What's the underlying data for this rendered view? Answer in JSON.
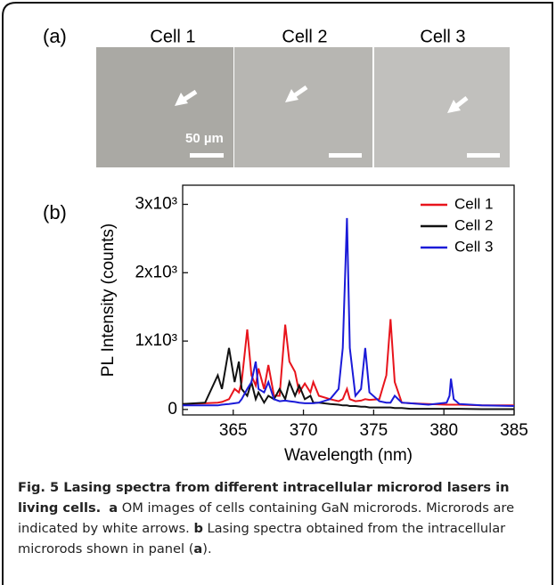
{
  "panel_a": {
    "label": "(a)",
    "cells": [
      "Cell 1",
      "Cell 2",
      "Cell 3"
    ],
    "scale_bar": "50 µm"
  },
  "panel_b": {
    "label": "(b)"
  },
  "chart_data": {
    "type": "line",
    "xlabel": "Wavelength (nm)",
    "ylabel": "PL Intensity (counts)",
    "xlim": [
      361.4,
      385
    ],
    "xticks": [
      365,
      370,
      375,
      380,
      385
    ],
    "ylim": [
      -80,
      3280
    ],
    "yticks": [
      0,
      {
        "value": 1000,
        "label": "1x10³"
      },
      {
        "value": 2000,
        "label": "2x10³"
      },
      {
        "value": 3000,
        "label": "3x10³"
      }
    ],
    "legend": "upper right",
    "x": [
      361.4,
      363.0,
      363.9,
      364.2,
      364.7,
      365.1,
      365.4,
      365.6,
      366.0,
      366.3,
      366.6,
      366.8,
      367.2,
      367.5,
      367.9,
      368.3,
      368.7,
      369.0,
      369.4,
      369.7,
      370.1,
      370.5,
      370.7,
      371.1,
      371.9,
      372.5,
      372.8,
      373.1,
      373.3,
      373.7,
      374.1,
      374.4,
      374.7,
      375.4,
      375.9,
      376.2,
      376.5,
      377.0,
      377.6,
      378.9,
      380.2,
      380.4,
      380.5,
      380.7,
      381.1,
      382.7,
      385.0
    ],
    "series": [
      {
        "name": "Cell 1",
        "color": "#e8141c",
        "values": [
          80,
          90,
          100,
          110,
          150,
          300,
          250,
          400,
          1170,
          500,
          350,
          600,
          300,
          650,
          200,
          200,
          1240,
          700,
          550,
          250,
          380,
          250,
          400,
          200,
          150,
          120,
          150,
          300,
          150,
          120,
          130,
          150,
          140,
          150,
          500,
          1320,
          400,
          100,
          90,
          80,
          70,
          70,
          70,
          70,
          70,
          60,
          60
        ]
      },
      {
        "name": "Cell 2",
        "color": "#111111",
        "values": [
          80,
          100,
          500,
          300,
          900,
          400,
          700,
          300,
          200,
          400,
          150,
          250,
          100,
          200,
          150,
          300,
          150,
          400,
          200,
          350,
          150,
          200,
          100,
          100,
          80,
          70,
          60,
          60,
          50,
          50,
          40,
          40,
          30,
          30,
          30,
          30,
          20,
          20,
          10,
          10,
          10,
          10,
          10,
          10,
          10,
          5,
          5
        ]
      },
      {
        "name": "Cell 3",
        "color": "#1a1ad8",
        "values": [
          60,
          60,
          60,
          70,
          80,
          90,
          100,
          150,
          300,
          400,
          700,
          300,
          250,
          400,
          150,
          120,
          130,
          120,
          110,
          100,
          90,
          90,
          90,
          100,
          150,
          300,
          900,
          2800,
          900,
          200,
          300,
          900,
          250,
          120,
          100,
          100,
          200,
          100,
          90,
          70,
          100,
          200,
          450,
          150,
          80,
          60,
          50
        ]
      }
    ]
  },
  "caption": {
    "title": "Fig. 5 Lasing spectra from different intracellular microrod lasers in living cells.",
    "part_a_label": "a",
    "part_a_text": "OM images of cells containing GaN microrods. Microrods are indicated by white arrows.",
    "part_b_label": "b",
    "part_b_text": "Lasing spectra obtained from the intracellular microrods shown in panel (",
    "part_b_ref": "a",
    "part_b_end": ")."
  }
}
